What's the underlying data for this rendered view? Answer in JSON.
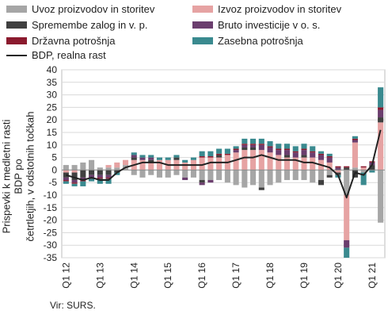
{
  "chart_data": {
    "type": "bar",
    "stacked": true,
    "title": "",
    "ylabel_lines": [
      "Prispevki k medletni rasti BDP po",
      "četrtletjih, v odstotnih točkah"
    ],
    "ylim": [
      -35,
      40
    ],
    "yticks": [
      -35,
      -30,
      -25,
      -20,
      -15,
      -10,
      -5,
      0,
      5,
      10,
      15,
      20,
      25,
      30,
      35,
      40
    ],
    "xtick_labels": [
      "Q1 12",
      "Q1 13",
      "Q1 14",
      "Q1 15",
      "Q1 16",
      "Q1 17",
      "Q1 18",
      "Q1 19",
      "Q1 20",
      "Q1 21"
    ],
    "xtick_index": [
      0,
      4,
      8,
      12,
      16,
      20,
      24,
      28,
      32,
      36
    ],
    "categories": [
      "Q1 12",
      "Q2 12",
      "Q3 12",
      "Q4 12",
      "Q1 13",
      "Q2 13",
      "Q3 13",
      "Q4 13",
      "Q1 14",
      "Q2 14",
      "Q3 14",
      "Q4 14",
      "Q1 15",
      "Q2 15",
      "Q3 15",
      "Q4 15",
      "Q1 16",
      "Q2 16",
      "Q3 16",
      "Q4 16",
      "Q1 17",
      "Q2 17",
      "Q3 17",
      "Q4 17",
      "Q1 18",
      "Q2 18",
      "Q3 18",
      "Q4 18",
      "Q1 19",
      "Q2 19",
      "Q3 19",
      "Q4 19",
      "Q1 20",
      "Q2 20",
      "Q3 20",
      "Q4 20",
      "Q1 21",
      "Q2 21"
    ],
    "grid": true,
    "legend_position": "top",
    "source": "Vir: SURS.",
    "series": [
      {
        "name": "Uvoz proizvodov in storitev",
        "color": "#a6a6a6",
        "values": [
          2,
          2,
          3,
          4,
          1,
          1,
          1,
          2,
          -2,
          -3,
          -2,
          -3,
          -3,
          -2,
          -3,
          -3,
          -4,
          -4,
          -4,
          -5,
          -6,
          -7,
          -6,
          -7,
          -6,
          -5,
          -4,
          -4,
          -4,
          -5,
          -4,
          -2,
          0,
          -10,
          1,
          -1,
          0,
          -21
        ]
      },
      {
        "name": "Izvoz proizvodov in storitev",
        "color": "#e6a3a3",
        "values": [
          -1,
          -1,
          0,
          0,
          0,
          1,
          2,
          2,
          4,
          4,
          3,
          4,
          4,
          4,
          3,
          4,
          5,
          5,
          5,
          6,
          7,
          8,
          8,
          8,
          7,
          6,
          5,
          5,
          5,
          5,
          4,
          3,
          -1,
          -18,
          10,
          1,
          0,
          19
        ]
      },
      {
        "name": "Spremembe zalog in v. p.",
        "color": "#404040",
        "values": [
          -2,
          -3,
          -3,
          -2,
          -2,
          -2,
          -1,
          0,
          1,
          0,
          1,
          0,
          0,
          1,
          0,
          0,
          -1,
          0,
          1,
          0,
          0,
          1,
          1,
          -1,
          0,
          0,
          1,
          0,
          1,
          0,
          -2,
          -1,
          -1,
          1,
          -3,
          0,
          2,
          2
        ]
      },
      {
        "name": "Bruto investicije v o. s.",
        "color": "#6b3e6e",
        "values": [
          -1,
          -1,
          -1,
          -1,
          -1,
          -1,
          0,
          0,
          1,
          1,
          1,
          0,
          0,
          0,
          -1,
          0,
          -1,
          -1,
          0,
          0,
          1,
          1,
          1,
          2,
          2,
          2,
          2,
          2,
          2,
          2,
          2,
          2,
          1,
          -3,
          1,
          0,
          1,
          3
        ]
      },
      {
        "name": "Državna potrošnja",
        "color": "#8b1a2e",
        "values": [
          -0.5,
          -0.5,
          -0.5,
          -0.5,
          -0.5,
          -0.5,
          0,
          0,
          0,
          0,
          0,
          0,
          0,
          0,
          0,
          0,
          0.5,
          0.5,
          0.5,
          0.5,
          0.5,
          0.5,
          0.5,
          0.5,
          0.5,
          0.5,
          0.5,
          0.5,
          0.5,
          0.5,
          0.5,
          0.5,
          0.5,
          0.5,
          0.5,
          0.5,
          0.5,
          1
        ]
      },
      {
        "name": "Zasebna potrošnja",
        "color": "#3a8a8f",
        "values": [
          -1,
          -1,
          -2,
          -1,
          -2,
          -2,
          -1,
          0,
          1,
          1,
          1,
          1,
          1,
          1,
          1,
          1,
          2,
          2,
          2,
          2,
          1,
          2,
          2,
          2,
          2,
          2,
          2,
          2,
          2,
          2,
          1,
          1,
          -1,
          -4,
          1,
          -5,
          -1,
          8
        ]
      },
      {
        "name": "BDP, realna rast",
        "color": "#222222",
        "type": "line",
        "values": [
          -2,
          -3,
          -4,
          -3,
          -4,
          -4,
          -1,
          1,
          2,
          3,
          3,
          3,
          2,
          2,
          2,
          2,
          2,
          3,
          3,
          3,
          4,
          5,
          5,
          6,
          5,
          4,
          4,
          4,
          3,
          3,
          2,
          1,
          -2,
          -11,
          -1,
          -2,
          2,
          16
        ]
      }
    ]
  }
}
